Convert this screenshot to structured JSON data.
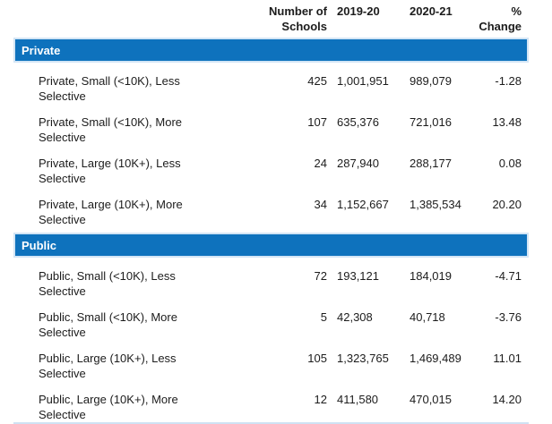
{
  "header": {
    "col_schools_line1": "Number of",
    "col_schools_line2": "Schools",
    "col_2019_20": "2019-20",
    "col_2020_21": "2020-21",
    "col_change_line1": "%",
    "col_change_line2": "Change"
  },
  "sections": [
    {
      "title": "Private",
      "rows": [
        {
          "label": "Private, Small (<10K), Less Selective",
          "schools": "425",
          "y2019_20": "1,001,951",
          "y2020_21": "989,079",
          "pct_change": "-1.28"
        },
        {
          "label": "Private, Small (<10K), More Selective",
          "schools": "107",
          "y2019_20": "635,376",
          "y2020_21": "721,016",
          "pct_change": "13.48"
        },
        {
          "label": "Private, Large (10K+), Less Selective",
          "schools": "24",
          "y2019_20": "287,940",
          "y2020_21": "288,177",
          "pct_change": "0.08"
        },
        {
          "label": "Private, Large (10K+), More Selective",
          "schools": "34",
          "y2019_20": "1,152,667",
          "y2020_21": "1,385,534",
          "pct_change": "20.20"
        }
      ]
    },
    {
      "title": "Public",
      "rows": [
        {
          "label": "Public, Small (<10K), Less Selective",
          "schools": "72",
          "y2019_20": "193,121",
          "y2020_21": "184,019",
          "pct_change": "-4.71"
        },
        {
          "label": "Public, Small (<10K), More Selective",
          "schools": "5",
          "y2019_20": "42,308",
          "y2020_21": "40,718",
          "pct_change": "-3.76"
        },
        {
          "label": "Public, Large (10K+), Less Selective",
          "schools": "105",
          "y2019_20": "1,323,765",
          "y2020_21": "1,469,489",
          "pct_change": "11.01"
        },
        {
          "label": "Public, Large (10K+), More Selective",
          "schools": "12",
          "y2019_20": "411,580",
          "y2020_21": "470,015",
          "pct_change": "14.20"
        }
      ]
    }
  ],
  "colors": {
    "section_bar_blue": "#0e72bd",
    "section_bar_edge": "#d3e5f5",
    "text": "#1c1c1c"
  }
}
